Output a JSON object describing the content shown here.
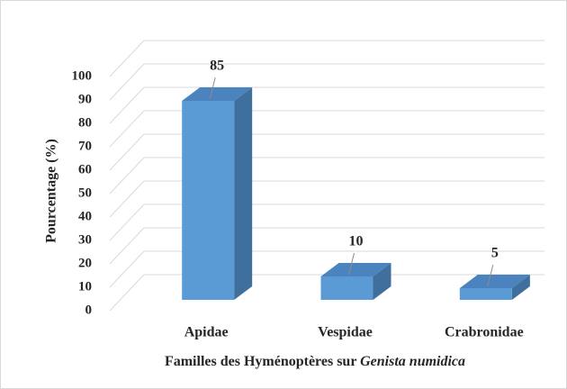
{
  "chart_data": {
    "type": "bar3d",
    "categories": [
      "Apidae",
      "Vespidae",
      "Crabronidae"
    ],
    "values": [
      85,
      10,
      5
    ],
    "color": "#5b9bd5",
    "ylabel": "Pourcentage (%)",
    "xlabel": {
      "text": "Familles des Hyménoptères sur",
      "italic": "Genista numidica"
    },
    "ylim": [
      0,
      100
    ],
    "yticks": [
      0,
      10,
      20,
      30,
      40,
      50,
      60,
      70,
      80,
      90,
      100
    ],
    "grid": true
  }
}
